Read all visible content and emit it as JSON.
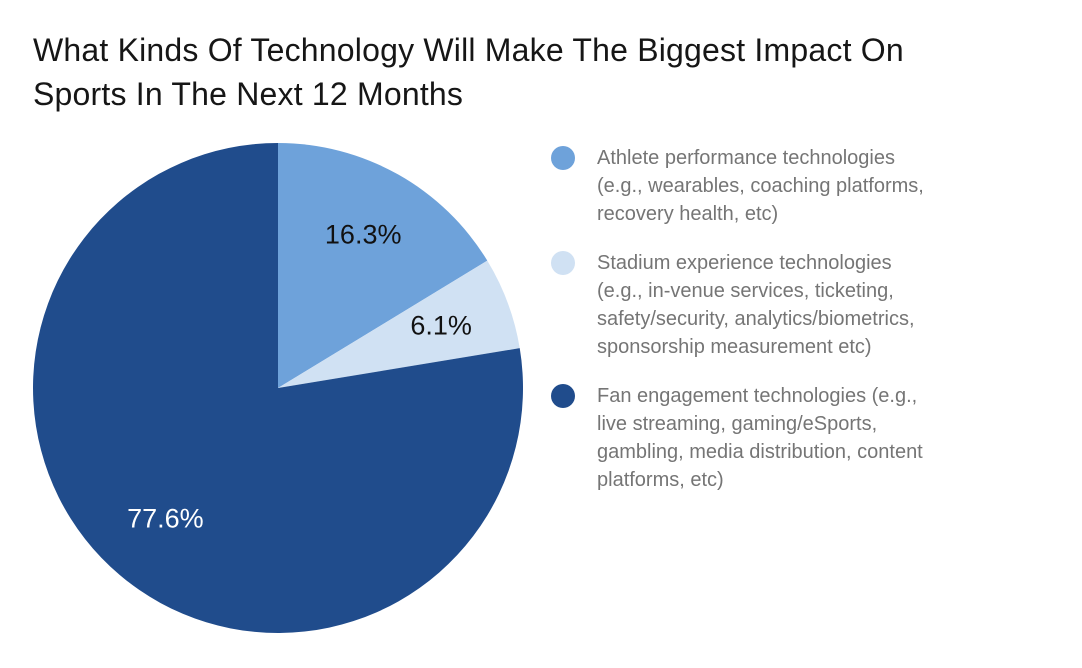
{
  "title": "What Kinds Of Technology Will Make The Biggest Impact On\nSports In The Next 12 Months",
  "chart_data": {
    "type": "pie",
    "title": "What Kinds Of Technology Will Make The Biggest Impact On Sports In The Next 12 Months",
    "direction": "clockwise",
    "start_angle_deg": 0,
    "legend_position": "right",
    "slices": [
      {
        "label": "Athlete performance technologies (e.g., wearables, coaching platforms, recovery health, etc)",
        "value": 16.3,
        "data_label": "16.3%",
        "color": "#6EA2DA",
        "data_label_color": "#111111"
      },
      {
        "label": "Stadium experience technologies (e.g., in-venue services, ticketing, safety/security, analytics/biometrics, sponsorship measurement etc)",
        "value": 6.1,
        "data_label": "6.1%",
        "color": "#D0E1F3",
        "data_label_color": "#111111"
      },
      {
        "label": "Fan engagement technologies (e.g., live streaming, gaming/eSports, gambling, media distribution, content platforms, etc)",
        "value": 77.6,
        "data_label": "77.6%",
        "color": "#204C8C",
        "data_label_color": "#FFFFFF"
      }
    ]
  },
  "legend": {
    "items": [
      {
        "label": "Athlete performance technologies\n(e.g., wearables, coaching platforms,\nrecovery health, etc)",
        "color": "#6EA2DA"
      },
      {
        "label": "Stadium experience technologies\n(e.g., in-venue services, ticketing,\nsafety/security, analytics/biometrics,\nsponsorship measurement etc)",
        "color": "#D0E1F3"
      },
      {
        "label": "Fan engagement technologies (e.g.,\nlive streaming, gaming/eSports,\ngambling, media distribution, content\nplatforms, etc)",
        "color": "#204C8C"
      }
    ]
  }
}
